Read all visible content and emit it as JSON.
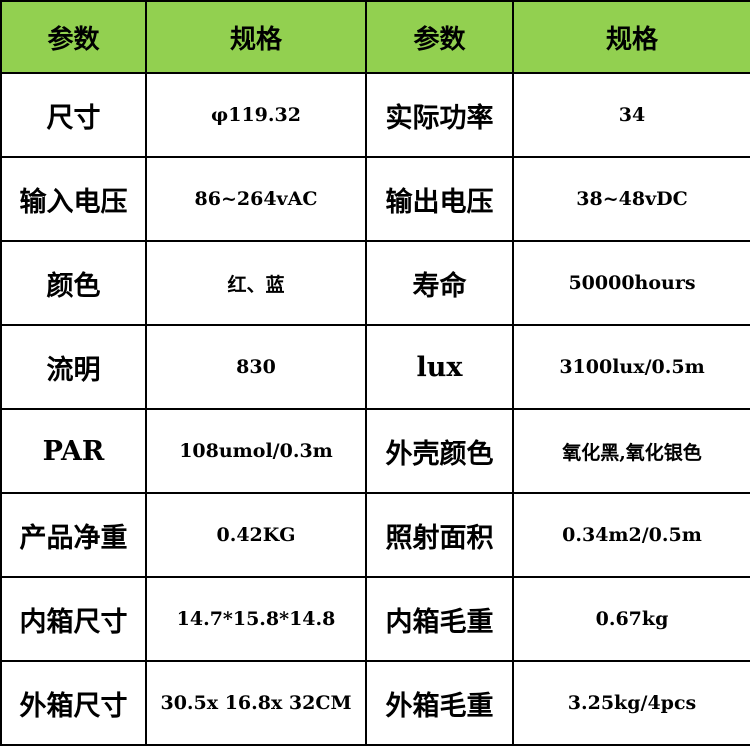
{
  "table": {
    "header": [
      "参数",
      "规格",
      "参数",
      "规格"
    ],
    "rows": [
      [
        "尺寸",
        "φ119.32",
        "实际功率",
        "34"
      ],
      [
        "输入电压",
        "86~264vAC",
        "输出电压",
        "38~48vDC"
      ],
      [
        "颜色",
        "红、蓝",
        "寿命",
        "50000hours"
      ],
      [
        "流明",
        "830",
        "lux",
        "3100lux/0.5m"
      ],
      [
        "PAR",
        "108umol/0.3m",
        "外壳颜色",
        "氧化黑,氧化银色"
      ],
      [
        "产品净重",
        "0.42KG",
        "照射面积",
        "0.34m2/0.5m"
      ],
      [
        "内箱尺寸",
        "14.7*15.8*14.8",
        "内箱毛重",
        "0.67kg"
      ],
      [
        "外箱尺寸",
        "30.5x 16.8x 32CM",
        "外箱毛重",
        "3.25kg/4pcs"
      ]
    ]
  }
}
